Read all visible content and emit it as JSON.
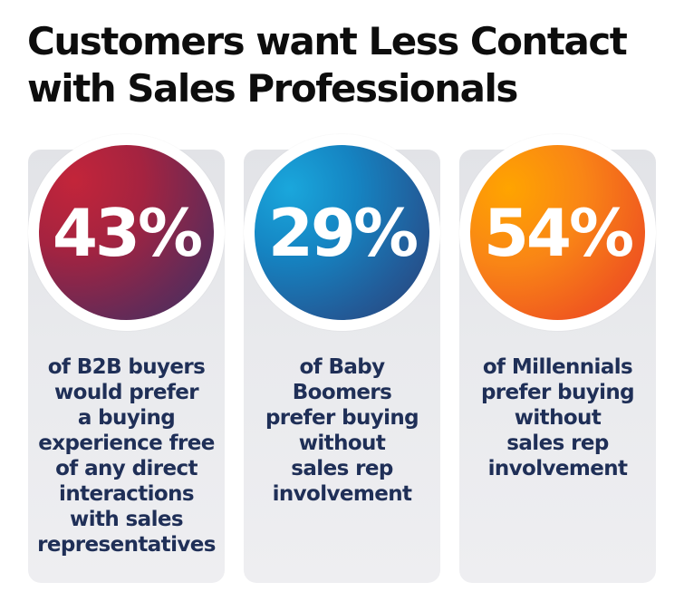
{
  "title": {
    "line1": "Customers want Less Contact",
    "line2": "with Sales Professionals"
  },
  "cards": [
    {
      "percent": "43%",
      "lines": [
        "of B2B buyers",
        "would prefer",
        "a buying",
        "experience free",
        "of any direct",
        "interactions",
        "with sales",
        "representatives"
      ],
      "color": "#a52340"
    },
    {
      "percent": "29%",
      "lines": [
        "of Baby",
        "Boomers",
        "prefer buying",
        "without",
        "sales rep",
        "involvement"
      ],
      "color": "#1584c2"
    },
    {
      "percent": "54%",
      "lines": [
        "of Millennials",
        "prefer buying",
        "without",
        "sales rep",
        "involvement"
      ],
      "color": "#f98516"
    }
  ],
  "colors": {
    "title_text": "#0d0d0d",
    "body_text": "#1f2f57",
    "card_background": "#e9eaed"
  }
}
